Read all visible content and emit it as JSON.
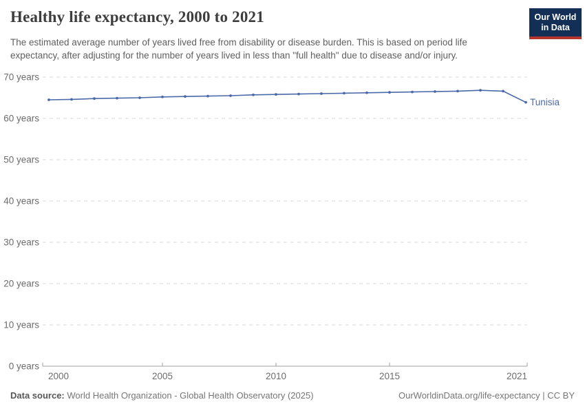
{
  "header": {
    "title": "Healthy life expectancy, 2000 to 2021",
    "subtitle_lines": [
      "The estimated average number of years lived free from disability or disease burden. This is based on period life",
      "expectancy, after adjusting for the number of years lived in less than \"full health\" due to disease and/or injury."
    ],
    "logo": {
      "line1": "Our World",
      "line2": "in Data",
      "bg": "#132f55",
      "stripe": "#b5342e"
    }
  },
  "chart_data": {
    "type": "line",
    "title": "Healthy life expectancy, 2000 to 2021",
    "x": [
      2000,
      2001,
      2002,
      2003,
      2004,
      2005,
      2006,
      2007,
      2008,
      2009,
      2010,
      2011,
      2012,
      2013,
      2014,
      2015,
      2016,
      2017,
      2018,
      2019,
      2020,
      2021
    ],
    "series": [
      {
        "name": "Tunisia",
        "color": "#4a69a8",
        "values": [
          64.5,
          64.6,
          64.8,
          64.9,
          65.0,
          65.2,
          65.3,
          65.4,
          65.5,
          65.7,
          65.8,
          65.9,
          66.0,
          66.1,
          66.2,
          66.3,
          66.4,
          66.5,
          66.6,
          66.8,
          66.6,
          63.9
        ]
      }
    ],
    "xlabel": "",
    "ylabel": "",
    "ylim": [
      0,
      70
    ],
    "xlim": [
      2000,
      2021
    ],
    "yticks": [
      0,
      10,
      20,
      30,
      40,
      50,
      60,
      70
    ],
    "ytick_labels": [
      "0 years",
      "10 years",
      "20 years",
      "30 years",
      "40 years",
      "50 years",
      "60 years",
      "70 years"
    ],
    "xticks": [
      2000,
      2005,
      2010,
      2015,
      2021
    ],
    "xtick_labels": [
      "2000",
      "2005",
      "2010",
      "2015",
      "2021"
    ],
    "grid": "horizontal-dashed",
    "legend": "end-of-line-label",
    "colors": {
      "gridline": "#dadada",
      "axis": "#9f9f9f",
      "tick_label": "#6c6c6c"
    }
  },
  "footer": {
    "datasource_label": "Data source:",
    "datasource_value": "World Health Organization - Global Health Observatory (2025)",
    "credit": "OurWorldinData.org/life-expectancy | CC BY"
  }
}
